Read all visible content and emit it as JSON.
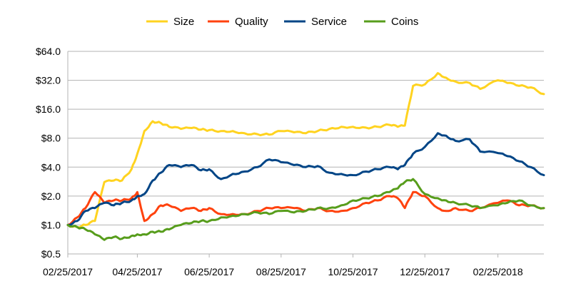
{
  "chart_data": {
    "type": "line",
    "title": "",
    "xlabel": "",
    "ylabel": "",
    "y_scale": "log2",
    "ylim": [
      0.5,
      64
    ],
    "y_ticks": [
      "$0.5",
      "$1.0",
      "$2.0",
      "$4.0",
      "$8.0",
      "$16.0",
      "$32.0",
      "$64.0"
    ],
    "x_ticks": [
      "02/25/2017",
      "04/25/2017",
      "06/25/2017",
      "08/25/2017",
      "10/25/2017",
      "12/25/2017",
      "02/25/2018"
    ],
    "xlim": [
      "2017-02-25",
      "2018-04-05"
    ],
    "grid": "horizontal",
    "legend_position": "top",
    "x": [
      "2017-02-25",
      "2017-03-05",
      "2017-03-12",
      "2017-03-20",
      "2017-03-28",
      "2017-04-05",
      "2017-04-12",
      "2017-04-20",
      "2017-04-25",
      "2017-05-01",
      "2017-05-08",
      "2017-05-15",
      "2017-05-22",
      "2017-06-01",
      "2017-06-10",
      "2017-06-18",
      "2017-06-25",
      "2017-07-05",
      "2017-07-15",
      "2017-07-25",
      "2017-08-05",
      "2017-08-15",
      "2017-08-25",
      "2017-09-05",
      "2017-09-15",
      "2017-09-25",
      "2017-10-05",
      "2017-10-15",
      "2017-10-25",
      "2017-11-05",
      "2017-11-15",
      "2017-11-25",
      "2017-12-02",
      "2017-12-08",
      "2017-12-15",
      "2017-12-25",
      "2018-01-05",
      "2018-01-12",
      "2018-01-20",
      "2018-02-01",
      "2018-02-10",
      "2018-02-25",
      "2018-03-05",
      "2018-03-15",
      "2018-03-25",
      "2018-04-05"
    ],
    "series": [
      {
        "name": "Size",
        "color": "#ffd320",
        "values": [
          1.0,
          0.95,
          1.0,
          1.1,
          2.8,
          2.9,
          2.9,
          3.8,
          5.5,
          9.5,
          12.0,
          11.5,
          10.5,
          10.0,
          10.2,
          9.8,
          9.7,
          9.5,
          9.5,
          9.0,
          8.8,
          8.7,
          9.5,
          9.2,
          9.0,
          9.5,
          10.0,
          10.5,
          10.5,
          10.3,
          10.5,
          11.0,
          10.5,
          10.8,
          28.0,
          29.0,
          38.0,
          34.0,
          31.0,
          30.0,
          26.0,
          32.0,
          30.0,
          28.0,
          27.0,
          23.0
        ]
      },
      {
        "name": "Quality",
        "color": "#ff420e",
        "values": [
          1.0,
          1.2,
          1.5,
          2.2,
          1.7,
          1.8,
          1.8,
          1.9,
          2.2,
          1.1,
          1.3,
          1.6,
          1.6,
          1.4,
          1.5,
          1.4,
          1.5,
          1.3,
          1.3,
          1.3,
          1.4,
          1.5,
          1.5,
          1.5,
          1.4,
          1.5,
          1.4,
          1.4,
          1.5,
          1.7,
          1.8,
          2.0,
          1.9,
          1.5,
          2.2,
          2.0,
          1.5,
          1.4,
          1.5,
          1.4,
          1.5,
          1.7,
          1.8,
          1.6,
          1.6,
          1.5
        ]
      },
      {
        "name": "Service",
        "color": "#004586",
        "values": [
          1.0,
          1.1,
          1.4,
          1.5,
          1.7,
          1.6,
          1.7,
          1.8,
          2.0,
          2.1,
          2.9,
          3.5,
          4.2,
          4.0,
          4.2,
          3.7,
          3.8,
          3.0,
          3.4,
          3.6,
          4.0,
          4.8,
          4.5,
          4.2,
          4.0,
          4.1,
          3.5,
          3.4,
          3.3,
          3.6,
          3.8,
          4.0,
          3.8,
          4.2,
          5.5,
          6.5,
          9.0,
          8.5,
          7.5,
          7.8,
          5.8,
          5.6,
          5.2,
          4.6,
          4.0,
          3.3
        ]
      },
      {
        "name": "Coins",
        "color": "#579d1c",
        "values": [
          1.0,
          0.95,
          0.9,
          0.8,
          0.7,
          0.75,
          0.72,
          0.77,
          0.8,
          0.8,
          0.85,
          0.85,
          0.9,
          1.0,
          1.05,
          1.1,
          1.1,
          1.2,
          1.25,
          1.3,
          1.35,
          1.3,
          1.4,
          1.35,
          1.4,
          1.5,
          1.5,
          1.6,
          1.8,
          1.9,
          2.0,
          2.2,
          2.4,
          2.8,
          3.0,
          2.1,
          1.9,
          1.8,
          1.7,
          1.6,
          1.5,
          1.6,
          1.7,
          1.8,
          1.6,
          1.5
        ]
      }
    ]
  }
}
